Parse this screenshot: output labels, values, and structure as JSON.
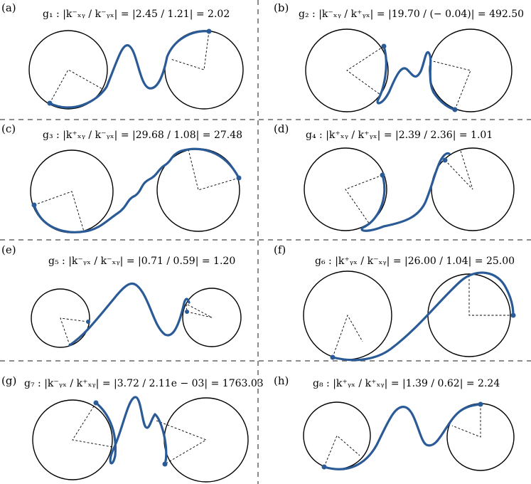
{
  "panels": [
    {
      "label": "(a)",
      "formula": "g₁ : |k⁻ₓᵧ / k⁻ᵧₓ| = |2.45 / 1.21| = 2.02"
    },
    {
      "label": "(b)",
      "formula": "g₂ : |k⁻ₓᵧ / k⁺ᵧₓ| = |19.70 / (− 0.04)| = 492.50"
    },
    {
      "label": "(c)",
      "formula": "g₃ : |k⁺ₓᵧ / k⁻ᵧₓ| = |29.68 / 1.08| = 27.48"
    },
    {
      "label": "(d)",
      "formula": "g₄ : |k⁺ₓᵧ / k⁺ᵧₓ| = |2.39 / 2.36| = 1.01"
    },
    {
      "label": "(e)",
      "formula": "g₅ : |k⁻ᵧₓ / k⁻ₓᵧ| = |0.71 / 0.59| = 1.20"
    },
    {
      "label": "(f)",
      "formula": "g₆ : |k⁺ᵧₓ / k⁻ₓᵧ| = |26.00 / 1.04| = 25.00"
    },
    {
      "label": "(g)",
      "formula": "g₇ : |k⁻ᵧₓ / k⁺ₓᵧ| = |3.72 / 2.11e − 03| = 1763.03"
    },
    {
      "label": "(h)",
      "formula": "g₈ : |k⁺ᵧₓ / k⁺ₓᵧ| = |1.39 / 0.62| = 2.24"
    }
  ],
  "colors": {
    "curve": "#2b5b97",
    "circle": "#000000",
    "divider": "#666666"
  }
}
